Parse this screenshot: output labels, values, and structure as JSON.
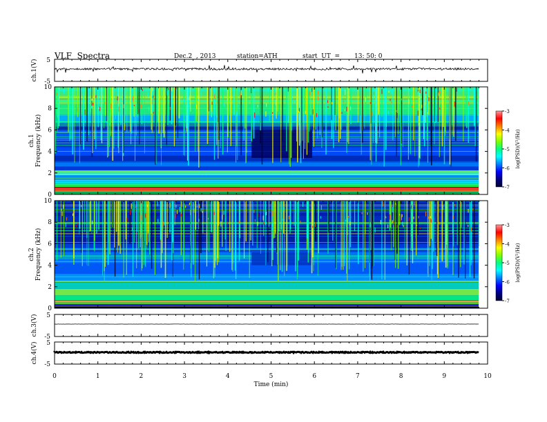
{
  "header": {
    "title": "VLF  Spectra",
    "date": "Dec.2  , 2013",
    "station": "station=ATH",
    "start_label": "start  UT  =",
    "start_value": "13: 50: 0"
  },
  "colors": {
    "colormap": [
      "#000033",
      "#000080",
      "#0000ff",
      "#0080ff",
      "#00ffff",
      "#00ff80",
      "#80ff00",
      "#ffff00",
      "#ff8000",
      "#ff0000",
      "#ff9999"
    ]
  },
  "chart_data": [
    {
      "type": "line",
      "panel": "ch1-waveform",
      "ylabel": "ch.1(V)",
      "yticks": [
        "5",
        "-5"
      ],
      "ylim": [
        -5,
        5
      ],
      "description_values": "Noisy waveform fluctuating around ~1 V"
    },
    {
      "type": "heatmap",
      "panel": "ch1-spectrogram",
      "ylabel": "ch.1\nFrequency (kHz)",
      "yticks": [
        "0",
        "2",
        "4",
        "6",
        "8",
        "10"
      ],
      "ylim": [
        0,
        10
      ],
      "colorbar": {
        "label": "log(PSD)(V²/Hz)",
        "ticks": [
          "-3",
          "-4",
          "-5",
          "-6",
          "-7"
        ],
        "range": [
          -7,
          -3
        ]
      }
    },
    {
      "type": "heatmap",
      "panel": "ch2-spectrogram",
      "ylabel": "ch.2\nFrequency (kHz)",
      "yticks": [
        "0",
        "2",
        "4",
        "6",
        "8",
        "10"
      ],
      "ylim": [
        0,
        10
      ],
      "colorbar": {
        "label": "log(PSD)(V²/Hz)",
        "ticks": [
          "-3",
          "-4",
          "-5",
          "-6",
          "-7"
        ],
        "range": [
          -7,
          -3
        ]
      }
    },
    {
      "type": "line",
      "panel": "ch3-waveform",
      "ylabel": "ch.3(V)",
      "yticks": [
        "5",
        "-5"
      ],
      "ylim": [
        -5,
        5
      ]
    },
    {
      "type": "line",
      "panel": "ch4-waveform",
      "ylabel": "ch.4(V)",
      "yticks": [
        "5",
        "-5"
      ],
      "ylim": [
        -5,
        5
      ]
    }
  ],
  "xaxis": {
    "label": "Time  (min)",
    "ticks": [
      "0",
      "1",
      "2",
      "3",
      "4",
      "5",
      "6",
      "7",
      "8",
      "9",
      "10"
    ],
    "xlim": [
      0,
      10
    ]
  }
}
